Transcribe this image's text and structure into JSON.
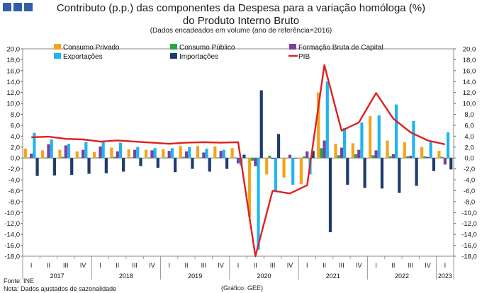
{
  "header": {
    "title_line1": "Contributo (p.p.) das componentes da Despesa para a variação homóloga (%)",
    "title_line2": "do Produto Interno Bruto",
    "subtitle": "(Dados encadeados em volume (ano de referência=2016)"
  },
  "footer": {
    "source": "Fonte: INE",
    "note": "Nota: Dados ajustados de sazonalidade",
    "credit": "(Gráfico: GEE)"
  },
  "chart_data": {
    "type": "bar",
    "ylim": [
      -18,
      20
    ],
    "yticks": [
      "20,0",
      "18,0",
      "16,0",
      "14,0",
      "12,0",
      "10,0",
      "8,0",
      "6,0",
      "4,0",
      "2,0",
      "0,0",
      "-2,0",
      "-4,0",
      "-6,0",
      "-8,0",
      "-10,0",
      "-12,0",
      "-14,0",
      "-16,0",
      "-18,0"
    ],
    "quarter_labels": [
      "I",
      "II",
      "III",
      "IV",
      "I",
      "II",
      "III",
      "IV",
      "I",
      "II",
      "III",
      "IV",
      "I",
      "II",
      "III",
      "IV",
      "I",
      "II",
      "III",
      "IV",
      "I",
      "II",
      "III",
      "IV",
      "I"
    ],
    "years": [
      "2017",
      "2018",
      "2019",
      "2020",
      "2021",
      "2022",
      "2023"
    ],
    "series": [
      {
        "name": "Consumo Privado",
        "color": "#f5a31a",
        "values": [
          1.7,
          1.4,
          1.5,
          1.2,
          1.1,
          1.9,
          1.6,
          1.5,
          1.6,
          2.2,
          2.2,
          2.1,
          1.8,
          -10.8,
          -3.0,
          -3.6,
          -4.8,
          12.0,
          2.6,
          2.7,
          7.7,
          3.2,
          2.9,
          2.0,
          1.3
        ]
      },
      {
        "name": "Consumo Público",
        "color": "#27a844",
        "values": [
          0.1,
          0.1,
          0.2,
          0.1,
          0.1,
          0.2,
          0.1,
          0.1,
          0.1,
          0.2,
          0.1,
          0.1,
          0.1,
          -0.5,
          0.4,
          0.0,
          0.3,
          1.8,
          0.5,
          0.7,
          0.5,
          0.3,
          0.3,
          0.3,
          0.2
        ]
      },
      {
        "name": "Formação Bruta de Capital",
        "color": "#7e3ea1",
        "values": [
          0.8,
          2.5,
          2.3,
          1.5,
          2.1,
          1.2,
          1.5,
          1.4,
          1.3,
          1.2,
          1.0,
          1.3,
          -1.0,
          -1.5,
          -0.2,
          0.6,
          1.2,
          3.2,
          1.9,
          1.5,
          1.4,
          0.7,
          0.4,
          0.2,
          -1.2
        ]
      },
      {
        "name": "Exportações",
        "color": "#1fb5ec",
        "values": [
          4.6,
          3.4,
          2.6,
          2.9,
          2.9,
          2.8,
          2.0,
          1.8,
          1.8,
          2.0,
          1.7,
          1.5,
          -1.4,
          -16.8,
          -6.2,
          -4.9,
          -3.0,
          14.0,
          5.5,
          6.5,
          7.8,
          9.8,
          6.8,
          3.1,
          4.7
        ]
      },
      {
        "name": "Importações",
        "color": "#1f3c6e",
        "values": [
          -3.3,
          -3.2,
          -3.1,
          -2.9,
          -2.8,
          -2.5,
          -1.5,
          -1.8,
          -2.6,
          -2.0,
          -2.5,
          -2.0,
          0.6,
          12.4,
          4.4,
          -0.1,
          1.3,
          -13.6,
          -4.9,
          -5.5,
          -5.6,
          -6.4,
          -5.1,
          -2.4,
          -2.1
        ]
      },
      {
        "name": "PIB",
        "color": "#e02020",
        "values": [
          3.8,
          3.9,
          3.5,
          3.4,
          3.0,
          3.2,
          3.0,
          2.8,
          2.6,
          2.8,
          2.9,
          2.8,
          2.9,
          -18.0,
          -6.0,
          -6.5,
          -5.0,
          17.0,
          5.0,
          6.5,
          11.9,
          7.2,
          4.7,
          3.2,
          2.5
        ]
      }
    ]
  }
}
